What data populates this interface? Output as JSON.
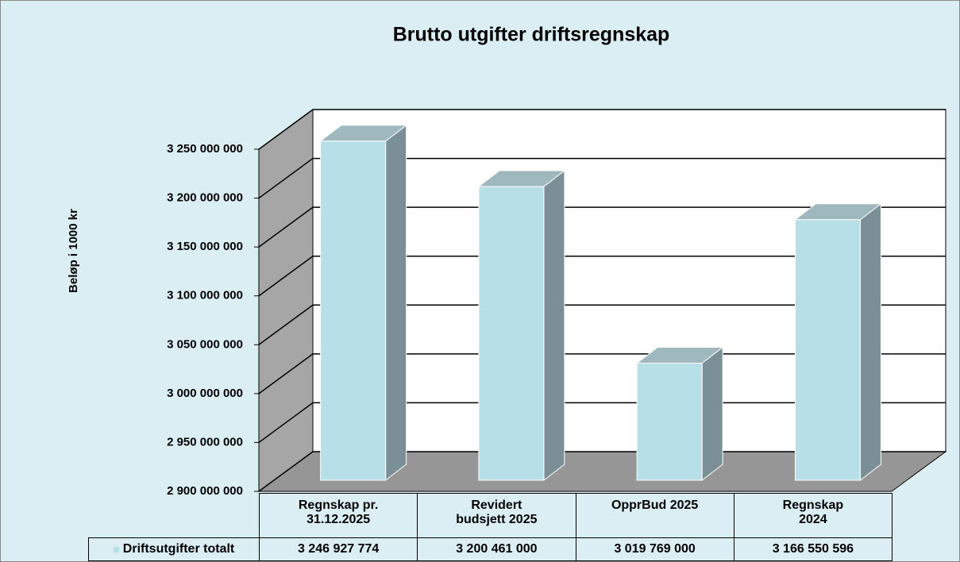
{
  "chart_data": {
    "type": "bar3d",
    "title": "Brutto utgifter driftsregnskap",
    "y_label": "Beløp i 1000 kr",
    "categories": [
      "Regnskap pr.\n31.12.2025",
      "Revidert\nbudsjett 2025",
      "OpprBud  2025",
      "Regnskap\n2024"
    ],
    "series": [
      {
        "name": "Driftsutgifter totalt",
        "color": "#b7dfe8",
        "values": [
          3246927774,
          3200461000,
          3019769000,
          3166550596
        ],
        "value_labels": [
          "3 246 927 774",
          "3 200 461 000",
          "3 019 769 000",
          "3 166 550 596"
        ]
      }
    ],
    "ylim": [
      2900000000,
      3250000000
    ],
    "yticks": [
      {
        "value": 2900000000,
        "label": "2 900 000 000"
      },
      {
        "value": 2950000000,
        "label": "2 950 000 000"
      },
      {
        "value": 3000000000,
        "label": "3 000 000 000"
      },
      {
        "value": 3050000000,
        "label": "3 050 000 000"
      },
      {
        "value": 3100000000,
        "label": "3 100 000 000"
      },
      {
        "value": 3150000000,
        "label": "3 150 000 000"
      },
      {
        "value": 3200000000,
        "label": "3 200 000 000"
      },
      {
        "value": 3250000000,
        "label": "3 250 000 000"
      }
    ],
    "grid": true,
    "data_table": true
  }
}
